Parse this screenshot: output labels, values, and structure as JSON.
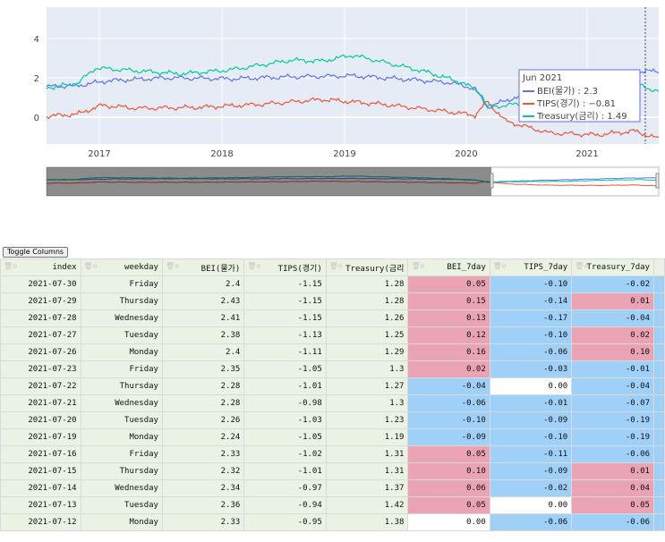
{
  "chart_data": {
    "type": "line",
    "x_ticks": [
      "2017",
      "2018",
      "2019",
      "2020",
      "2021"
    ],
    "y_ticks": [
      "0",
      "2",
      "4"
    ],
    "series": [
      {
        "name": "BEI(물가)",
        "color": "#636efa"
      },
      {
        "name": "TIPS(경기)",
        "color": "#ef553b"
      },
      {
        "name": "Treasury(금리)",
        "color": "#00cc96"
      }
    ],
    "tooltip": {
      "title": "Jun 2021",
      "rows": [
        {
          "label": "BEI(물가) : 2.3",
          "color": "#636efa"
        },
        {
          "label": "TIPS(경기) : −0.81",
          "color": "#ef553b"
        },
        {
          "label": "Treasury(금리) : 1.49",
          "color": "#00cc96"
        }
      ]
    },
    "range_slider": true
  },
  "toggle_button": "Toggle Columns",
  "table": {
    "columns": [
      "index",
      "weekday",
      "BEI(물가)",
      "TIPS(경기)",
      "Treasury(금리",
      "BEI_7day",
      "TIPS_7day",
      "Treasury_7day"
    ],
    "rows": [
      [
        "2021-07-30",
        "Friday",
        "2.4",
        "-1.15",
        "1.28",
        "0.05",
        "-0.10",
        "-0.02"
      ],
      [
        "2021-07-29",
        "Thursday",
        "2.43",
        "-1.15",
        "1.28",
        "0.15",
        "-0.14",
        "0.01"
      ],
      [
        "2021-07-28",
        "Wednesday",
        "2.41",
        "-1.15",
        "1.26",
        "0.13",
        "-0.17",
        "-0.04"
      ],
      [
        "2021-07-27",
        "Tuesday",
        "2.38",
        "-1.13",
        "1.25",
        "0.12",
        "-0.10",
        "0.02"
      ],
      [
        "2021-07-26",
        "Monday",
        "2.4",
        "-1.11",
        "1.29",
        "0.16",
        "-0.06",
        "0.10"
      ],
      [
        "2021-07-23",
        "Friday",
        "2.35",
        "-1.05",
        "1.3",
        "0.02",
        "-0.03",
        "-0.01"
      ],
      [
        "2021-07-22",
        "Thursday",
        "2.28",
        "-1.01",
        "1.27",
        "-0.04",
        "0.00",
        "-0.04"
      ],
      [
        "2021-07-21",
        "Wednesday",
        "2.28",
        "-0.98",
        "1.3",
        "-0.06",
        "-0.01",
        "-0.07"
      ],
      [
        "2021-07-20",
        "Tuesday",
        "2.26",
        "-1.03",
        "1.23",
        "-0.10",
        "-0.09",
        "-0.19"
      ],
      [
        "2021-07-19",
        "Monday",
        "2.24",
        "-1.05",
        "1.19",
        "-0.09",
        "-0.10",
        "-0.19"
      ],
      [
        "2021-07-16",
        "Friday",
        "2.33",
        "-1.02",
        "1.31",
        "0.05",
        "-0.11",
        "-0.06"
      ],
      [
        "2021-07-15",
        "Thursday",
        "2.32",
        "-1.01",
        "1.31",
        "0.10",
        "-0.09",
        "0.01"
      ],
      [
        "2021-07-14",
        "Wednesday",
        "2.34",
        "-0.97",
        "1.37",
        "0.06",
        "-0.02",
        "0.04"
      ],
      [
        "2021-07-13",
        "Tuesday",
        "2.36",
        "-0.94",
        "1.42",
        "0.05",
        "0.00",
        "0.05"
      ],
      [
        "2021-07-12",
        "Monday",
        "2.33",
        "-0.95",
        "1.38",
        "0.00",
        "-0.06",
        "-0.06"
      ]
    ]
  }
}
